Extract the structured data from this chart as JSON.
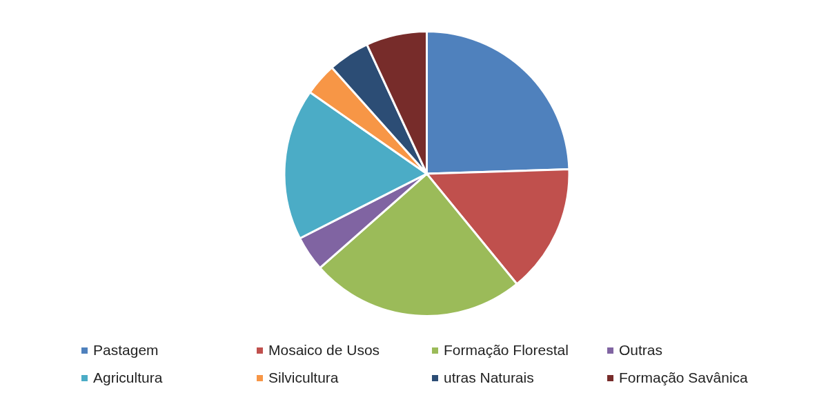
{
  "chart_data": {
    "type": "pie",
    "categories": [
      "Pastagem",
      "Mosaico de Usos",
      "Formação Florestal",
      "Outras",
      "Agricultura",
      "Silvicultura",
      "utras Naturais",
      "Formação Savânica"
    ],
    "values": [
      24.5,
      14.6,
      24.4,
      4.0,
      17.2,
      3.7,
      4.7,
      6.9
    ],
    "colors": [
      "#4f81bd",
      "#c0504d",
      "#9bbb59",
      "#8064a2",
      "#4bacc6",
      "#f79646",
      "#2c4d75",
      "#772c2a"
    ],
    "legend": "bottom"
  }
}
